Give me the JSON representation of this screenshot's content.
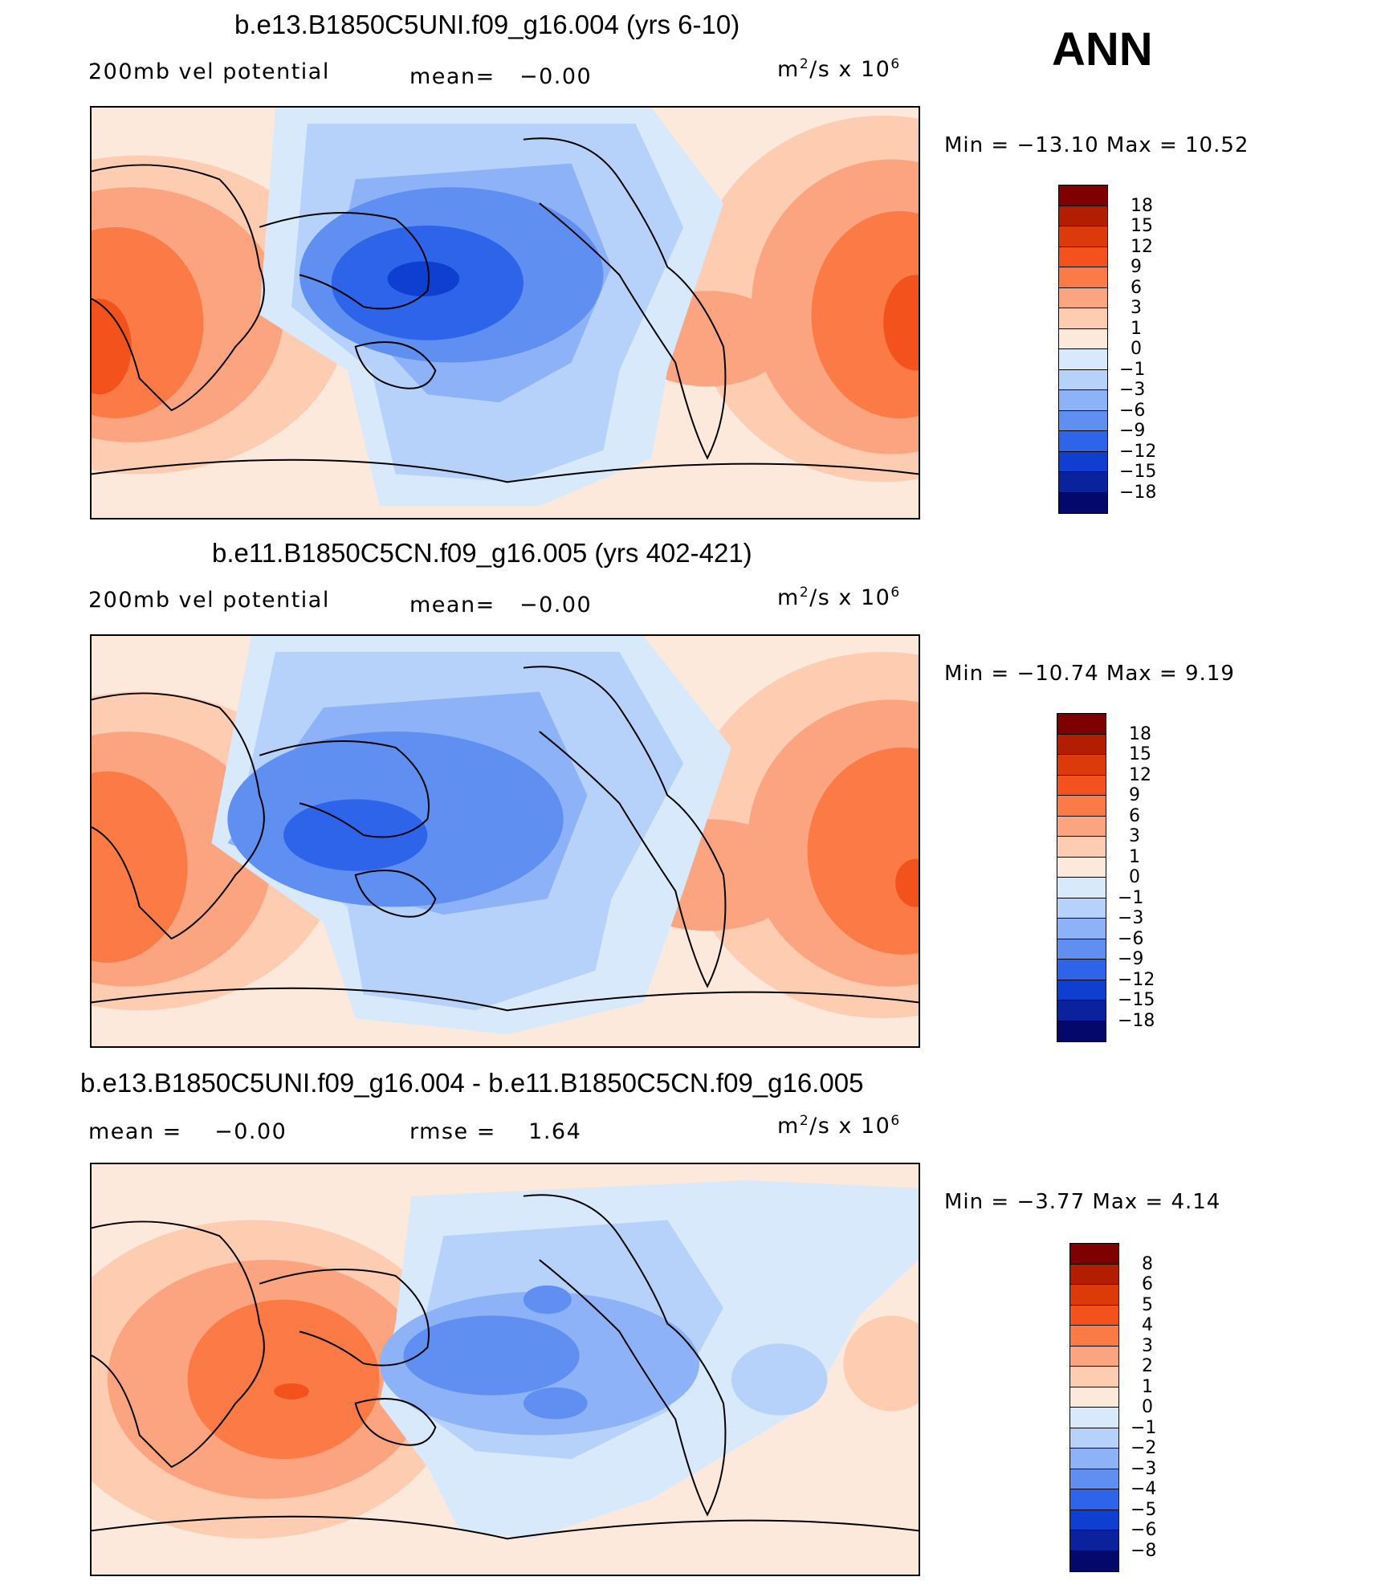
{
  "season": "ANN",
  "units": {
    "base": "m",
    "exp1": "2",
    "mid": "/s x 10",
    "exp2": "6"
  },
  "panels": [
    {
      "id": "model",
      "title": "b.e13.B1850C5UNI.f09_g16.004 (yrs 6-10)",
      "left_label": "200mb vel potential",
      "center_label": "mean=",
      "center_value": "−0.00",
      "minmax": "Min = −13.10 Max =  10.52",
      "levels": [
        "18",
        "15",
        "12",
        "9",
        "6",
        "3",
        "1",
        "0",
        "−1",
        "−3",
        "−6",
        "−9",
        "−12",
        "−15",
        "−18"
      ]
    },
    {
      "id": "control",
      "title": "b.e11.B1850C5CN.f09_g16.005 (yrs 402-421)",
      "left_label": "200mb vel potential",
      "center_label": "mean=",
      "center_value": "−0.00",
      "minmax": "Min = −10.74 Max =   9.19",
      "levels": [
        "18",
        "15",
        "12",
        "9",
        "6",
        "3",
        "1",
        "0",
        "−1",
        "−3",
        "−6",
        "−9",
        "−12",
        "−15",
        "−18"
      ]
    },
    {
      "id": "difference",
      "title": "b.e13.B1850C5UNI.f09_g16.004 - b.e11.B1850C5CN.f09_g16.005",
      "left_label": "mean =",
      "left_value": "−0.00",
      "center_label": "rmse =",
      "center_value": "1.64",
      "minmax": "Min =  −3.77 Max =   4.14",
      "levels": [
        "8",
        "6",
        "5",
        "4",
        "3",
        "2",
        "1",
        "0",
        "−1",
        "−2",
        "−3",
        "−4",
        "−5",
        "−6",
        "−8"
      ]
    }
  ],
  "palette": [
    "#7f0000",
    "#b31e00",
    "#dc3a0b",
    "#f4521c",
    "#fb7a45",
    "#fca47f",
    "#fdccb1",
    "#fde9dc",
    "#d7e9fb",
    "#b6d2fb",
    "#8db2f8",
    "#5f8ff1",
    "#2e64ea",
    "#0f3fd1",
    "#0a229c",
    "#04086b"
  ]
}
